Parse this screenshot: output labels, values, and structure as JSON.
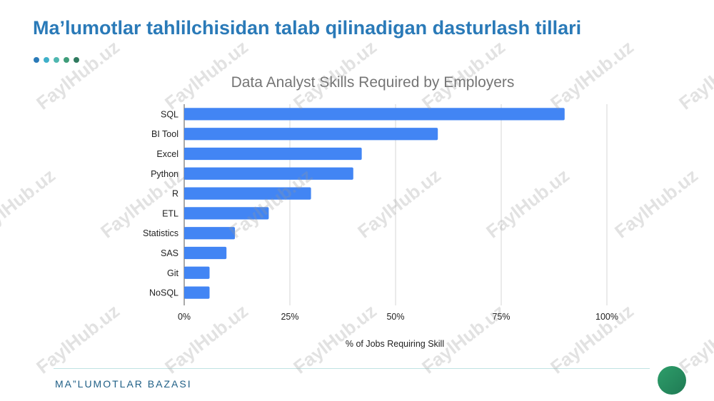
{
  "slide": {
    "title": "Ma’lumotlar tahlilchisidan talab qilinadigan dasturlash tillari",
    "footer": "MA”LUMOTLAR BAZASI",
    "title_color": "#2a7ab8",
    "dots_colors": [
      "#2a7ab8",
      "#3fb0c9",
      "#4fb7b0",
      "#3f9d7a",
      "#2f7a5f"
    ],
    "accent_circle_colors": [
      "#2e9e6a",
      "#1f7a54"
    ]
  },
  "watermark": {
    "text": "FaylHub.uz"
  },
  "chart_data": {
    "type": "bar",
    "orientation": "horizontal",
    "title": "Data Analyst Skills Required by Employers",
    "xlabel": "% of Jobs Requiring Skill",
    "ylabel": "",
    "categories": [
      "SQL",
      "BI Tool",
      "Excel",
      "Python",
      "R",
      "ETL",
      "Statistics",
      "SAS",
      "Git",
      "NoSQL"
    ],
    "values": [
      90,
      60,
      42,
      40,
      30,
      20,
      12,
      10,
      6,
      6
    ],
    "xlim": [
      0,
      100
    ],
    "xticks": [
      0,
      25,
      50,
      75,
      100
    ],
    "xtick_labels": [
      "0%",
      "25%",
      "50%",
      "75%",
      "100%"
    ],
    "grid": true,
    "legend": "none",
    "bar_color": "#4285f4"
  }
}
